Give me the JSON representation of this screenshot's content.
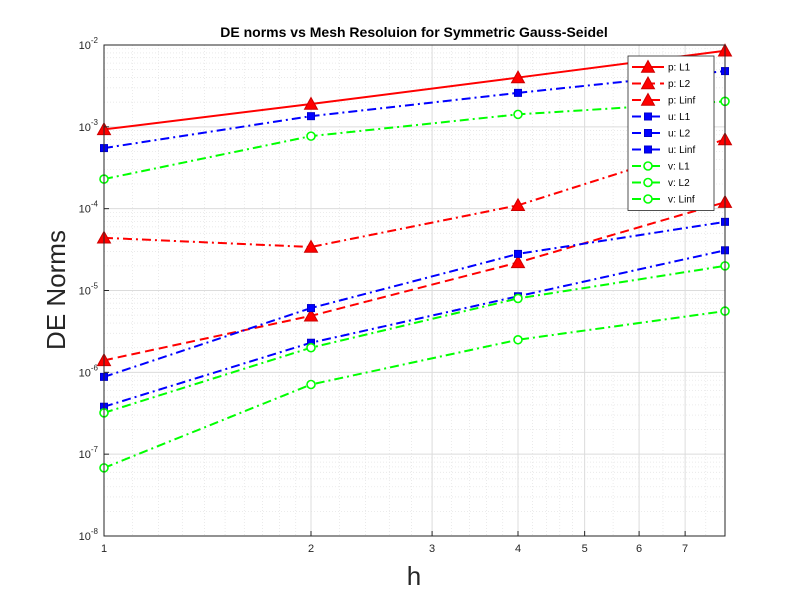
{
  "chart_data": {
    "type": "line",
    "title": "DE norms vs Mesh Resoluion for Symmetric Gauss-Seidel",
    "xlabel": "h",
    "ylabel": "DE Norms",
    "xscale": "log",
    "yscale": "log",
    "xlim": [
      1,
      8
    ],
    "ylim": [
      1e-08,
      0.01
    ],
    "grid": true,
    "minor_grid": true,
    "legend_position": "top-right",
    "x_ticks": [
      {
        "value": 1,
        "label": "1"
      },
      {
        "value": 2,
        "label": "2"
      },
      {
        "value": 3,
        "label": "3"
      },
      {
        "value": 4,
        "label": "4"
      },
      {
        "value": 5,
        "label": "5"
      },
      {
        "value": 6,
        "label": "6"
      },
      {
        "value": 7,
        "label": "7"
      }
    ],
    "y_ticks": [
      {
        "value": 1e-08,
        "mantissa": "10",
        "exponent": "-8"
      },
      {
        "value": 1e-07,
        "mantissa": "10",
        "exponent": "-7"
      },
      {
        "value": 1e-06,
        "mantissa": "10",
        "exponent": "-6"
      },
      {
        "value": 1e-05,
        "mantissa": "10",
        "exponent": "-5"
      },
      {
        "value": 0.0001,
        "mantissa": "10",
        "exponent": "-4"
      },
      {
        "value": 0.001,
        "mantissa": "10",
        "exponent": "-3"
      },
      {
        "value": 0.01,
        "mantissa": "10",
        "exponent": "-2"
      }
    ],
    "x": [
      1,
      2,
      4,
      8
    ],
    "series": [
      {
        "name": "p: L1",
        "color": "#ff0000",
        "dash": "solid",
        "marker": "triangle",
        "values": [
          0.00093,
          0.0019,
          0.004,
          0.0085
        ]
      },
      {
        "name": "p: L2",
        "color": "#ff0000",
        "dash": "dashed",
        "marker": "triangle",
        "values": [
          1.4e-06,
          4.9e-06,
          2.2e-05,
          0.00012
        ]
      },
      {
        "name": "p: Linf",
        "color": "#ff0000",
        "dash": "dashdot",
        "marker": "triangle",
        "values": [
          4.4e-05,
          3.4e-05,
          0.00011,
          0.0007
        ]
      },
      {
        "name": "u: L1",
        "color": "#0000ff",
        "dash": "dashdot",
        "marker": "square",
        "values": [
          0.00055,
          0.00135,
          0.0026,
          0.0048
        ]
      },
      {
        "name": "u: L2",
        "color": "#0000ff",
        "dash": "dashdot",
        "marker": "square",
        "values": [
          3.8e-07,
          2.3e-06,
          8.5e-06,
          3.1e-05
        ]
      },
      {
        "name": "u: Linf",
        "color": "#0000ff",
        "dash": "dashdot",
        "marker": "square",
        "values": [
          8.8e-07,
          6.1e-06,
          2.8e-05,
          6.9e-05
        ]
      },
      {
        "name": "v: L1",
        "color": "#00ff00",
        "dash": "dashdot",
        "marker": "circle",
        "values": [
          0.00023,
          0.00077,
          0.00142,
          0.00205
        ]
      },
      {
        "name": "v: L2",
        "color": "#00ff00",
        "dash": "dashdot",
        "marker": "circle",
        "values": [
          6.8e-08,
          7.1e-07,
          2.5e-06,
          5.6e-06
        ]
      },
      {
        "name": "v: Linf",
        "color": "#00ff00",
        "dash": "dashdot",
        "marker": "circle",
        "values": [
          3.2e-07,
          2e-06,
          8e-06,
          2e-05
        ]
      }
    ]
  }
}
